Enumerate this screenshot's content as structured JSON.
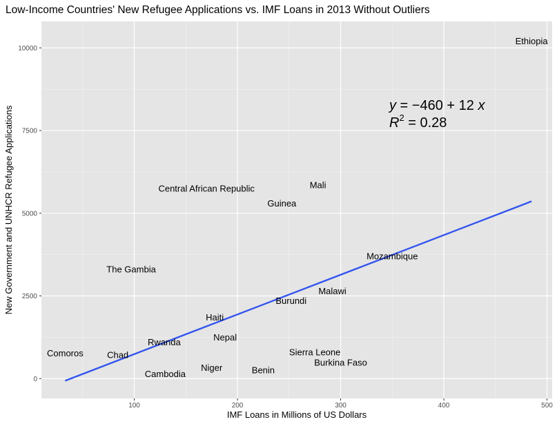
{
  "chart_data": {
    "type": "scatter",
    "title": "Low-Income Countries' New Refugee Applications vs. IMF Loans in 2013 Without Outliers",
    "xlabel": "IMF Loans in Millions of US Dollars",
    "ylabel": "New Government and UNHCR Refugee Applications",
    "xlim": [
      10,
      505
    ],
    "ylim": [
      -600,
      10800
    ],
    "x_ticks": [
      100,
      200,
      300,
      400,
      500
    ],
    "y_ticks": [
      0,
      2500,
      5000,
      7500,
      10000
    ],
    "grid": true,
    "points": [
      {
        "label": "Ethiopia",
        "x": 485,
        "y": 10200
      },
      {
        "label": "Mali",
        "x": 278,
        "y": 5850
      },
      {
        "label": "Central African Republic",
        "x": 170,
        "y": 5750
      },
      {
        "label": "Guinea",
        "x": 243,
        "y": 5300
      },
      {
        "label": "Mozambique",
        "x": 350,
        "y": 3700
      },
      {
        "label": "The Gambia",
        "x": 97,
        "y": 3300
      },
      {
        "label": "Malawi",
        "x": 292,
        "y": 2650
      },
      {
        "label": "Burundi",
        "x": 252,
        "y": 2350
      },
      {
        "label": "Haiti",
        "x": 178,
        "y": 1850
      },
      {
        "label": "Nepal",
        "x": 188,
        "y": 1250
      },
      {
        "label": "Rwanda",
        "x": 129,
        "y": 1100
      },
      {
        "label": "Comoros",
        "x": 33,
        "y": 770
      },
      {
        "label": "Sierra Leone",
        "x": 275,
        "y": 800
      },
      {
        "label": "Chad",
        "x": 84,
        "y": 720
      },
      {
        "label": "Burkina Faso",
        "x": 300,
        "y": 490
      },
      {
        "label": "Niger",
        "x": 175,
        "y": 330
      },
      {
        "label": "Benin",
        "x": 225,
        "y": 260
      },
      {
        "label": "Cambodia",
        "x": 130,
        "y": 140
      }
    ],
    "fit": {
      "intercept": -460,
      "slope": 12,
      "x_range": [
        33,
        485
      ],
      "color": "#3355ee"
    },
    "equation": {
      "y_symbol": "y",
      "eq_text": " = −460 + 12 ",
      "x_symbol": "x",
      "r_symbol": "R",
      "r_sup": "2",
      "r_text": " = 0.28"
    },
    "colors": {
      "panel": "#e5e5e5",
      "grid_major": "#ffffff",
      "tick_text": "#4d4d4d"
    }
  }
}
